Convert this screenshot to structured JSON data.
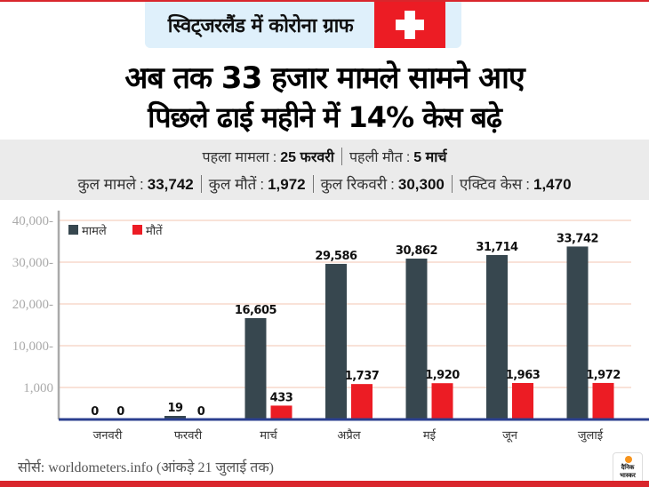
{
  "header": {
    "title": "स्विट्जरलैंड में कोरोना ग्राफ",
    "flag_icon": "swiss-flag-icon"
  },
  "headline": {
    "line1": "अब तक 33 हजार मामले सामने आए",
    "line2": "पिछले ढाई महीने में 14%  केस बढ़े"
  },
  "stats": {
    "row1": [
      {
        "label": "पहला मामला",
        "value": "25 फरवरी"
      },
      {
        "label": "पहली मौत",
        "value": "5 मार्च"
      }
    ],
    "row2": [
      {
        "label": "कुल मामले",
        "value": "33,742"
      },
      {
        "label": "कुल मौतें",
        "value": "1,972"
      },
      {
        "label": "कुल रिकवरी",
        "value": "30,300"
      },
      {
        "label": "एक्टिव केस",
        "value": "1,470"
      }
    ],
    "separator": ":"
  },
  "chart_data": {
    "type": "bar",
    "title": "स्विट्जरलैंड में कोरोना ग्राफ",
    "xlabel": "",
    "ylabel": "",
    "categories": [
      "जनवरी",
      "फरवरी",
      "मार्च",
      "अप्रैल",
      "मई",
      "जून",
      "जुलाई"
    ],
    "series": [
      {
        "name": "मामले",
        "color": "#37474f",
        "values": [
          0,
          19,
          16605,
          29586,
          30862,
          31714,
          33742
        ],
        "labels": [
          "0",
          "19",
          "16,605",
          "29,586",
          "30,862",
          "31,714",
          "33,742"
        ]
      },
      {
        "name": "मौतें",
        "color": "#ec1c24",
        "values": [
          0,
          0,
          433,
          1737,
          1920,
          1963,
          1972
        ],
        "labels": [
          "0",
          "0",
          "433",
          "1,737",
          "1,920",
          "1,963",
          "1,972"
        ]
      }
    ],
    "yticks": [
      1000,
      10000,
      20000,
      30000,
      40000
    ],
    "ytick_labels": [
      "1,000",
      "10,000",
      "20,000",
      "30,000",
      "40,000"
    ],
    "ylim": [
      0,
      40000
    ],
    "grid": true,
    "legend": "top-left",
    "colors": {
      "cases": "#37474f",
      "deaths": "#ec1c24",
      "gridline": "#f7d9cc",
      "baseline": "#2b3f8f",
      "axis": "#aaaaaa",
      "tick_text": "#aaaaaa"
    }
  },
  "footer": {
    "source": "सोर्स: worldometers.info  (आंकड़े 21 जुलाई तक)",
    "logo_line1": "दैनिक",
    "logo_line2": "भास्कर"
  }
}
